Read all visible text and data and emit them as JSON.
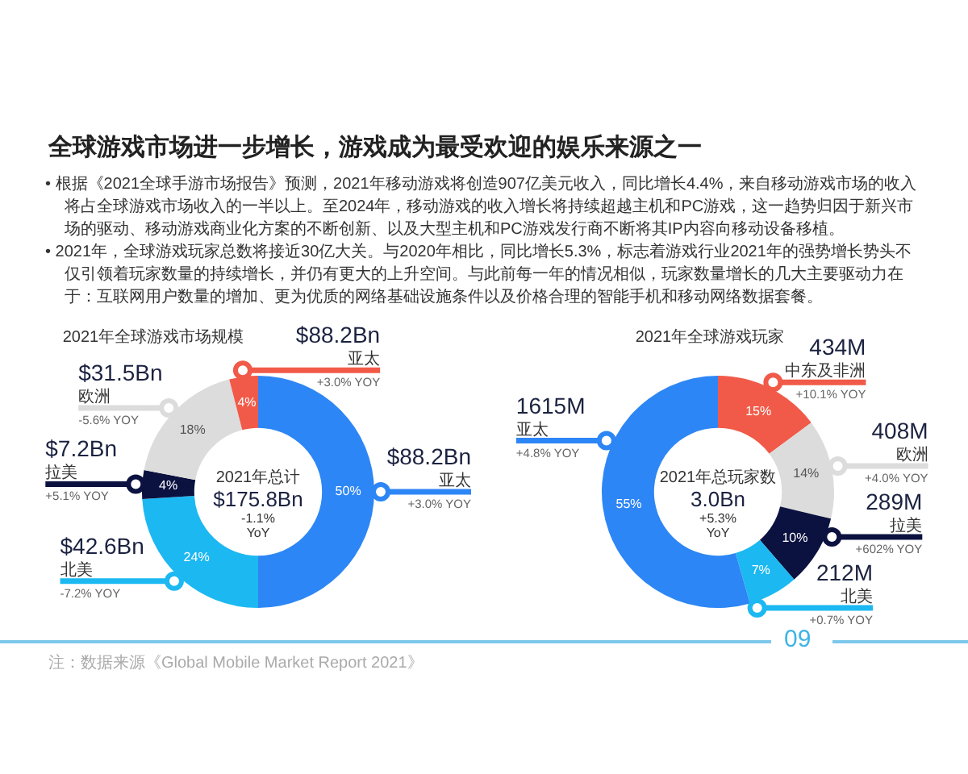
{
  "chart_data": [
    {
      "type": "other",
      "title": "全球游戏市场进一步增长，游戏成为最受欢迎的娱乐来源之一",
      "annotations": [
        "• 根据《2021全球手游市场报告》预测，2021年移动游戏将创造907亿美元收入，同比增长4.4%，来自移动游戏市场的收入将占全球游戏市场收入的一半以上。至2024年，移动游戏的收入增长将持续超越主机和PC游戏，这一趋势归因于新兴市场的驱动、移动游戏商业化方案的不断创新、以及大型主机和PC游戏发行商不断将其IP内容向移动设备移植。",
        "• 2021年，全球游戏玩家总数将接近30亿大关。与2020年相比，同比增长5.3%，标志着游戏行业2021年的强势增长势头不仅引领着玩家数量的持续增长，并仍有更大的上升空间。与此前每一年的情况相似，玩家数量增长的几大主要驱动力在于：互联网用户数量的增加、更为优质的网络基础设施条件以及价格合理的智能手机和移动网络数据套餐。",
        "注：数据来源《Global Mobile Market Report 2021》",
        "09"
      ]
    },
    {
      "type": "donut",
      "title": "2021年全球游戏市场规模",
      "categories": [
        "亚太",
        "北美",
        "拉美",
        "欧洲",
        "亚太"
      ],
      "values": [
        50,
        24,
        4,
        18,
        4
      ],
      "colors": [
        "#2d86f5",
        "#1cb8f2",
        "#0b1240",
        "#dcdcdc",
        "#f15a48"
      ],
      "value_labels": [
        "50%",
        "24%",
        "4%",
        "18%",
        "4%"
      ],
      "annotations": [
        "$88.2Bn",
        "$42.6Bn",
        "$7.2Bn",
        "$31.5Bn",
        "$88.2Bn",
        "+3.0% YOY",
        "-7.2% YOY",
        "+5.1% YOY",
        "-5.6% YOY",
        "+3.0% YOY",
        "2021年总计",
        "$175.8Bn",
        "-1.1%",
        "YoY"
      ]
    },
    {
      "type": "donut",
      "title": "2021年全球游戏玩家",
      "categories": [
        "中东及非洲",
        "欧洲",
        "拉美",
        "北美",
        "亚太"
      ],
      "values": [
        15,
        14,
        10,
        7,
        55
      ],
      "colors": [
        "#f15a48",
        "#dcdcdc",
        "#0b1240",
        "#1cb8f2",
        "#2d86f5"
      ],
      "value_labels": [
        "15%",
        "14%",
        "10%",
        "7%",
        "55%"
      ],
      "annotations": [
        "434M",
        "408M",
        "289M",
        "212M",
        "1615M",
        "+10.1% YOY",
        "+4.0% YOY",
        "+602% YOY",
        "+0.7% YOY",
        "+4.8% YOY",
        "2021年总玩家数",
        "3.0Bn",
        "+5.3%",
        "YoY"
      ]
    }
  ]
}
